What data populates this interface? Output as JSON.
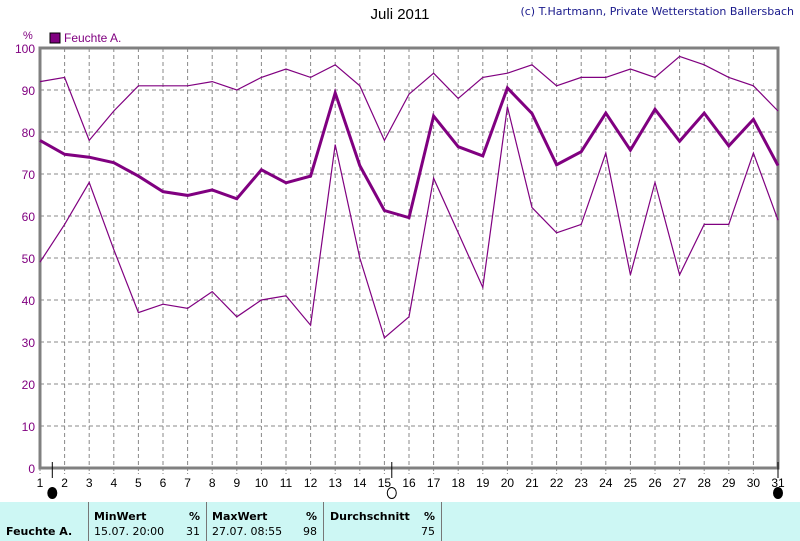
{
  "chart_data": {
    "type": "line",
    "title": "Juli 2011",
    "copyright": "(c) T.Hartmann, Private Wetterstation Ballersbach",
    "ylabel": "%",
    "ylim": [
      0,
      100
    ],
    "yticks": [
      0,
      10,
      20,
      30,
      40,
      50,
      60,
      70,
      80,
      90,
      100
    ],
    "xlim": [
      1,
      31
    ],
    "x": [
      1,
      2,
      3,
      4,
      5,
      6,
      7,
      8,
      9,
      10,
      11,
      12,
      13,
      14,
      15,
      16,
      17,
      18,
      19,
      20,
      21,
      22,
      23,
      24,
      25,
      26,
      27,
      28,
      29,
      30,
      31
    ],
    "legend": {
      "label": "Feuchte A.",
      "position": "top-left"
    },
    "color": "#800080",
    "grid": true,
    "series": [
      {
        "name": "Max",
        "values": [
          92,
          93,
          78,
          85,
          91,
          91,
          91,
          92,
          90,
          93,
          95,
          93,
          96,
          91,
          78,
          89,
          94,
          88,
          93,
          94,
          96,
          91,
          93,
          93,
          95,
          93,
          98,
          96,
          93,
          91,
          85
        ]
      },
      {
        "name": "Durchschnitt",
        "values": [
          78,
          74.7,
          74,
          72.7,
          69.5,
          65.8,
          64.9,
          66.2,
          64.1,
          71,
          67.9,
          69.5,
          89.3,
          72,
          61.3,
          59.6,
          83.8,
          76.5,
          74.3,
          90.5,
          84.4,
          72.2,
          75.3,
          84.5,
          75.7,
          85.4,
          77.8,
          84.5,
          76.7,
          83,
          72
        ]
      },
      {
        "name": "Min",
        "values": [
          49,
          58,
          68,
          52,
          37,
          39,
          38,
          42,
          36,
          40,
          41,
          34,
          77,
          50,
          31,
          36,
          69,
          56,
          43,
          86,
          62,
          56,
          58,
          75,
          46,
          68,
          46,
          58,
          58,
          75,
          59
        ]
      }
    ],
    "moon_phases": [
      {
        "day": 1.5,
        "phase": "new"
      },
      {
        "day": 15.3,
        "phase": "full"
      },
      {
        "day": 31,
        "phase": "new"
      }
    ]
  },
  "stats": {
    "row_label": "Feuchte A.",
    "min_header": "MinWert",
    "min_unit": "%",
    "min_time": "15.07.  20:00",
    "min_value": "31",
    "max_header": "MaxWert",
    "max_unit": "%",
    "max_time": "27.07.  08:55",
    "max_value": "98",
    "avg_header": "Durchschnitt",
    "avg_unit": "%",
    "avg_value": "75"
  }
}
